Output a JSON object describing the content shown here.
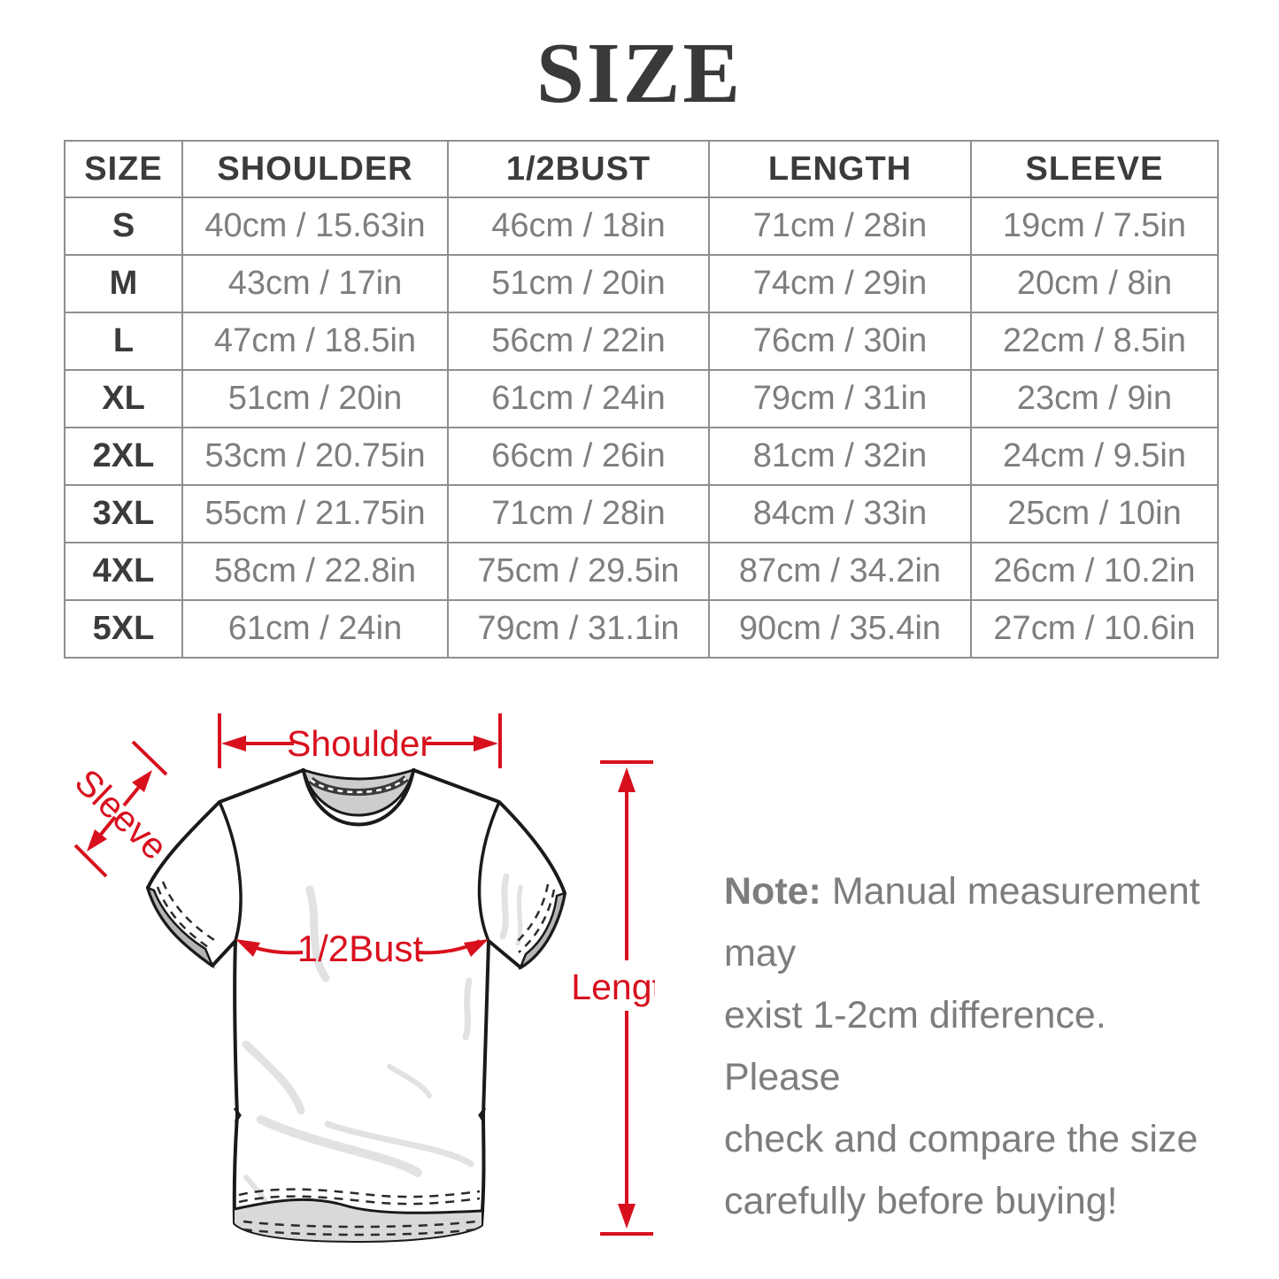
{
  "title": "SIZE",
  "table": {
    "headers": [
      "SIZE",
      "SHOULDER",
      "1/2BUST",
      "LENGTH",
      "SLEEVE"
    ],
    "rows": [
      {
        "size": "S",
        "cells": [
          "40cm / 15.63in",
          "46cm / 18in",
          "71cm / 28in",
          "19cm / 7.5in"
        ]
      },
      {
        "size": "M",
        "cells": [
          "43cm / 17in",
          "51cm / 20in",
          "74cm / 29in",
          "20cm / 8in"
        ]
      },
      {
        "size": "L",
        "cells": [
          "47cm / 18.5in",
          "56cm / 22in",
          "76cm / 30in",
          "22cm / 8.5in"
        ]
      },
      {
        "size": "XL",
        "cells": [
          "51cm / 20in",
          "61cm / 24in",
          "79cm / 31in",
          "23cm / 9in"
        ]
      },
      {
        "size": "2XL",
        "cells": [
          "53cm / 20.75in",
          "66cm / 26in",
          "81cm / 32in",
          "24cm / 9.5in"
        ]
      },
      {
        "size": "3XL",
        "cells": [
          "55cm / 21.75in",
          "71cm / 28in",
          "84cm / 33in",
          "25cm / 10in"
        ]
      },
      {
        "size": "4XL",
        "cells": [
          "58cm / 22.8in",
          "75cm / 29.5in",
          "87cm / 34.2in",
          "26cm / 10.2in"
        ]
      },
      {
        "size": "5XL",
        "cells": [
          "61cm / 24in",
          "79cm / 31.1in",
          "90cm / 35.4in",
          "27cm / 10.6in"
        ]
      }
    ]
  },
  "diagram": {
    "shoulder_label": "Shoulder",
    "sleeve_label": "Sleeve",
    "bust_label": "1/2Bust",
    "length_label": "Length"
  },
  "note": {
    "label": "Note:",
    "lines": [
      "Manual measurement may",
      "exist 1-2cm difference. Please",
      "check and compare the size",
      "carefully before buying!"
    ]
  },
  "colors": {
    "annotation_red": "#d8101e",
    "table_border": "#8f8f8f",
    "header_text": "#3b3b3b",
    "data_text": "#7e7e7e",
    "note_text": "#7d7d7d"
  }
}
